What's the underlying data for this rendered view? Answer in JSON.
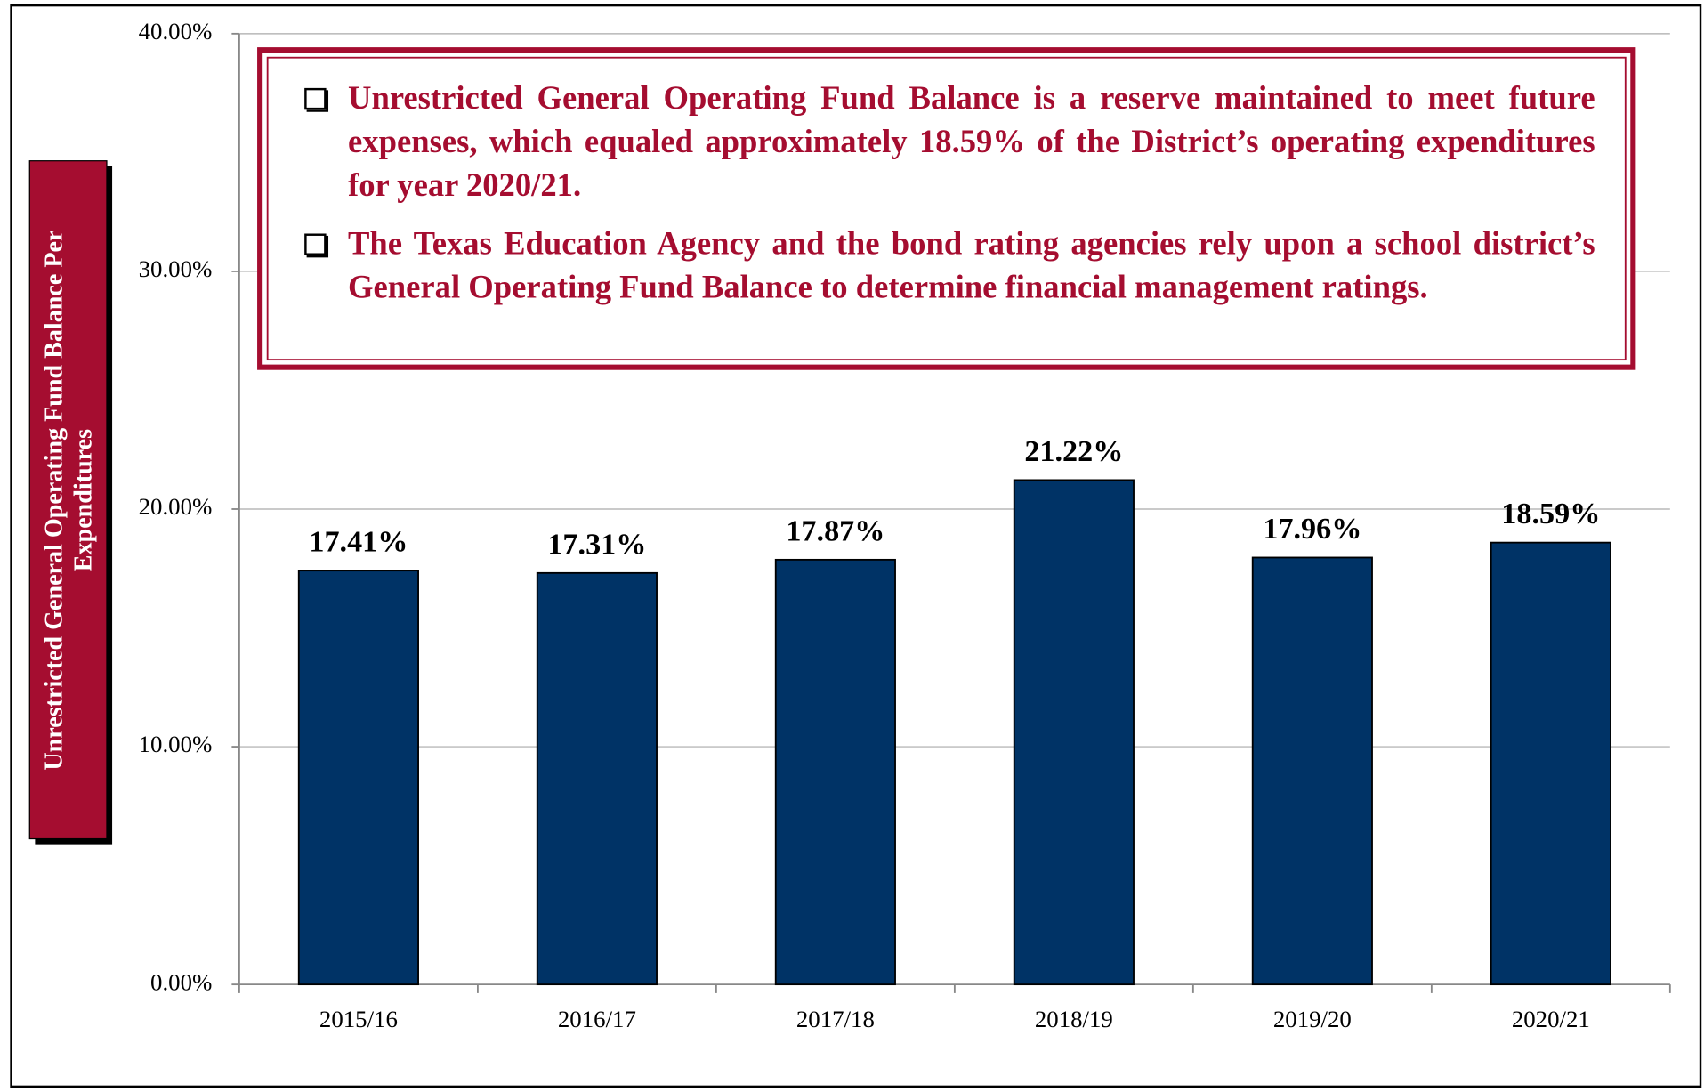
{
  "chart_data": {
    "type": "bar",
    "y_label": "Unrestricted General Operating Fund Balance Per Expenditures",
    "annotations": [
      "Unrestricted General Operating Fund Balance is a reserve maintained to meet future expenses, which equaled approximately 18.59% of the District’s operating expenditures for year 2020/21.",
      "The Texas Education Agency and the bond rating agencies rely upon a school district’s General Operating Fund Balance to determine financial management ratings."
    ],
    "categories": [
      "2015/16",
      "2016/17",
      "2017/18",
      "2018/19",
      "2019/20",
      "2020/21"
    ],
    "values": [
      17.41,
      17.31,
      17.87,
      21.22,
      17.96,
      18.59
    ],
    "value_labels": [
      "17.41%",
      "17.31%",
      "17.87%",
      "21.22%",
      "17.96%",
      "18.59%"
    ],
    "color": "#003366",
    "ylim": [
      0,
      40
    ],
    "yticks": [
      {
        "value": 0,
        "label": "0.00%"
      },
      {
        "value": 10,
        "label": "10.00%"
      },
      {
        "value": 20,
        "label": "20.00%"
      },
      {
        "value": 30,
        "label": "30.00%"
      },
      {
        "value": 40,
        "label": "40.00%"
      }
    ],
    "grid": true
  }
}
